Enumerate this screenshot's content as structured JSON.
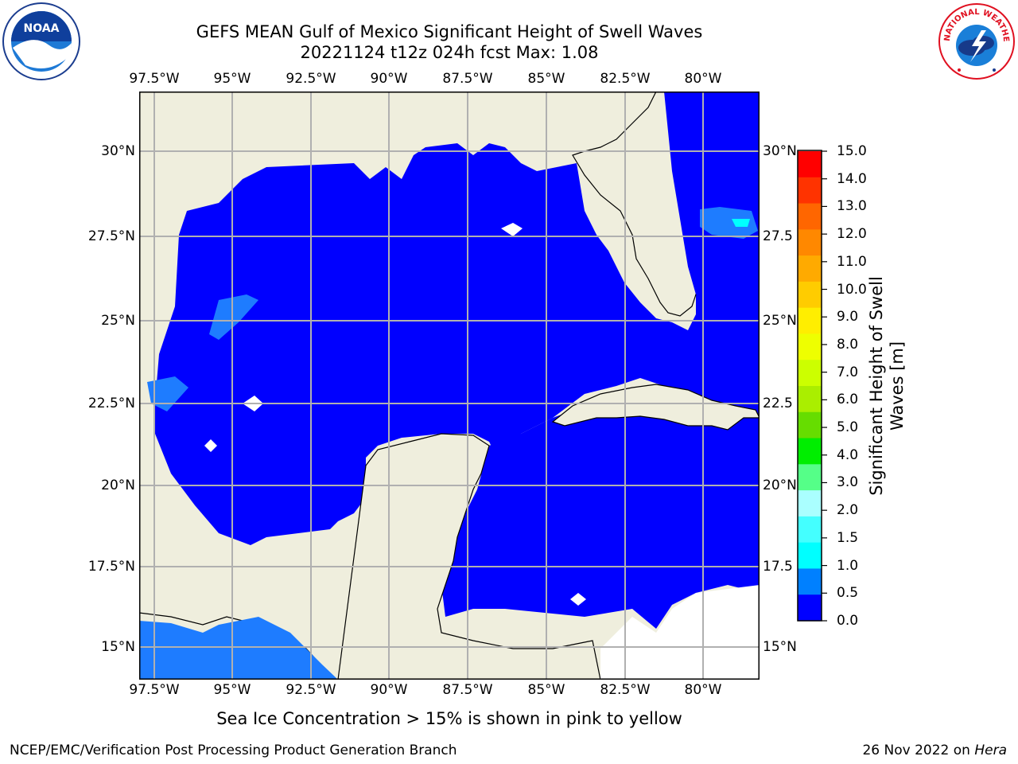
{
  "title_line1": "GEFS MEAN Gulf of Mexico Significant Height of Swell Waves",
  "title_line2": "20221124 t12z 024h fcst   Max: 1.08",
  "lon_labels": [
    "97.5°W",
    "95°W",
    "92.5°W",
    "90°W",
    "87.5°W",
    "85°W",
    "82.5°W",
    "80°W"
  ],
  "lat_labels_left": [
    "30°N",
    "27.5°N",
    "25°N",
    "22.5°N",
    "20°N",
    "17.5°N",
    "15°N"
  ],
  "lat_labels_right": [
    "30°N",
    "27.5",
    "25°N",
    "22.5",
    "20°N",
    "17.5",
    "15°N"
  ],
  "colorbar": {
    "label": "Significant Height of Swell Waves [m]",
    "label_line1": "Significant Height of Swell",
    "label_line2": "Waves [m]",
    "ticks": [
      "15.0",
      "14.0",
      "13.0",
      "12.0",
      "11.0",
      "10.0",
      "9.0",
      "8.0",
      "7.0",
      "6.0",
      "5.0",
      "4.0",
      "3.0",
      "2.0",
      "1.5",
      "1.0",
      "0.5",
      "0.0"
    ],
    "colors_top_to_bottom": [
      "#ff0000",
      "#ff3300",
      "#ff6600",
      "#ff8800",
      "#ffaa00",
      "#ffcc00",
      "#ffee00",
      "#eeff00",
      "#ccff00",
      "#aaee00",
      "#66dd00",
      "#00ee00",
      "#55ff88",
      "#aaffff",
      "#44ffff",
      "#00ffff",
      "#0080ff",
      "#0000ff"
    ]
  },
  "map_colors": {
    "land": "#efeedd",
    "swell_low": "#0000ff",
    "swell_mid": "#1e7cff",
    "swell_high": "#00ffff",
    "grid": "#b0b0b0"
  },
  "note": "Sea Ice Concentration > 15% is shown in pink to yellow",
  "footer_left": "NCEP/EMC/Verification Post Processing Product Generation Branch",
  "footer_date": "26 Nov 2022 on ",
  "footer_host": "Hera",
  "logo_left": "NOAA",
  "logo_right_text": "NATIONAL WEATHER SERVICE"
}
